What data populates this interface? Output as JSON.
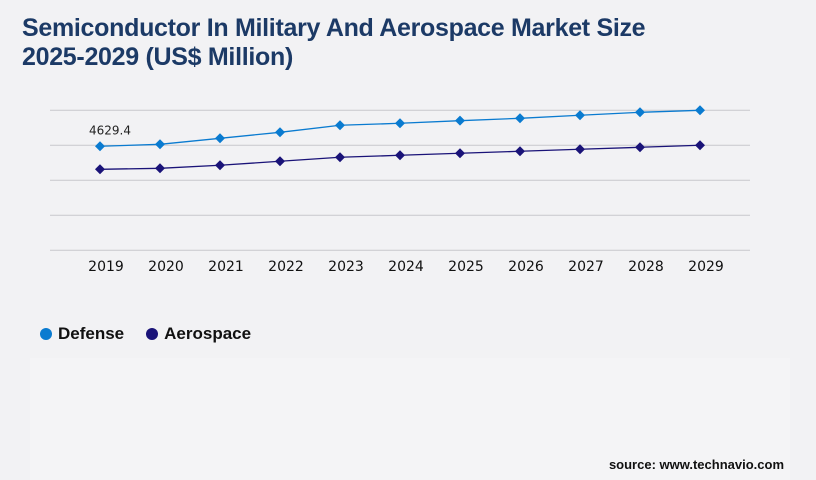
{
  "title_line1": "Semiconductor In Military And Aerospace Market Size",
  "title_line2": "2025-2029 (US$ Million)",
  "source": "source: www.technavio.com",
  "chart_data": {
    "type": "line",
    "categories": [
      "2019",
      "2020",
      "2021",
      "2022",
      "2023",
      "2024",
      "2025",
      "2026",
      "2027",
      "2028",
      "2029"
    ],
    "series": [
      {
        "name": "Defense",
        "color": "#0a7bd0",
        "values": [
          4629.4,
          4718,
          4985,
          5252,
          5564,
          5653,
          5769,
          5875,
          6009,
          6142,
          6231
        ]
      },
      {
        "name": "Aerospace",
        "color": "#1a1378",
        "values": [
          3605,
          3650,
          3784,
          3962,
          4140,
          4229,
          4318,
          4407,
          4496,
          4585,
          4674
        ]
      }
    ],
    "data_labels": [
      {
        "series": "Defense",
        "category": "2019",
        "text": "4629.4"
      }
    ],
    "ylim": [
      0,
      6231
    ],
    "grid": true,
    "y_tick_labels_shown": false,
    "legend_position": "bottom-left"
  }
}
